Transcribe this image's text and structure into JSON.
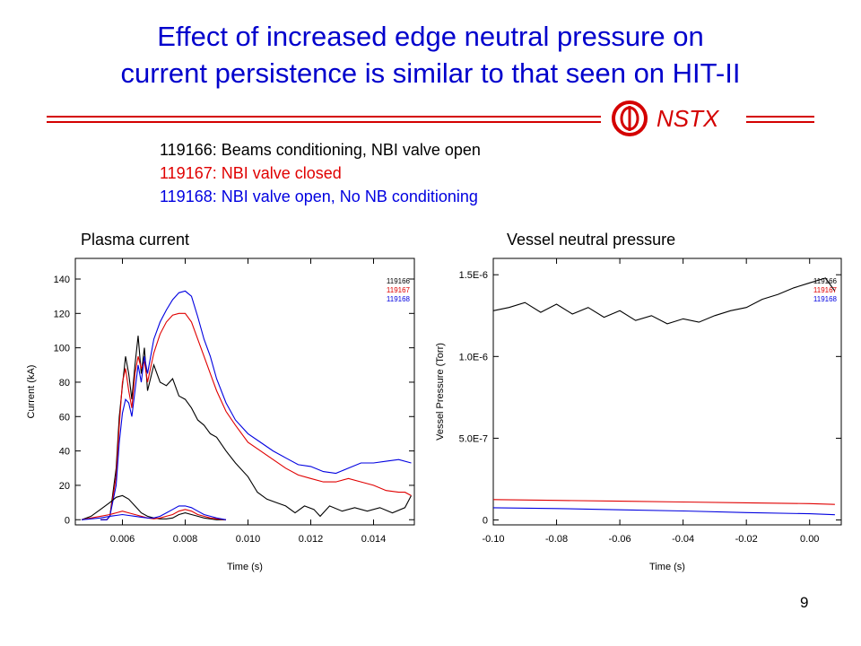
{
  "slide": {
    "title_line1": "Effect of increased edge neutral pressure on",
    "title_line2": "current persistence is similar to that seen on HIT-II",
    "logo_text": "NSTX",
    "page_number": "9",
    "colors": {
      "title": "#0000cc",
      "rule": "#d40000",
      "shot1": "#000000",
      "shot2": "#e00000",
      "shot3": "#0000e0"
    },
    "shots": [
      {
        "label": "119166: Beams conditioning, NBI valve open",
        "color": "#000000"
      },
      {
        "label": "119167: NBI valve closed",
        "color": "#e00000"
      },
      {
        "label": "119168: NBI valve open, No NB conditioning",
        "color": "#0000e0"
      }
    ],
    "left_panel_title": "Plasma current",
    "right_panel_title": "Vessel neutral pressure"
  },
  "chart_data": [
    {
      "type": "line",
      "title": "Plasma current",
      "xlabel": "Time (s)",
      "ylabel": "Current (kA)",
      "xlim": [
        0.0045,
        0.0153
      ],
      "ylim": [
        -3,
        152
      ],
      "xticks": [
        0.006,
        0.008,
        0.01,
        0.012,
        0.014
      ],
      "xtick_labels": [
        "0.006",
        "0.008",
        "0.010",
        "0.012",
        "0.014"
      ],
      "yticks": [
        0,
        20,
        40,
        60,
        80,
        100,
        120,
        140
      ],
      "ytick_labels": [
        "0",
        "20",
        "40",
        "60",
        "80",
        "100",
        "120",
        "140"
      ],
      "legend": [
        "119166",
        "119167",
        "119168"
      ],
      "legend_position": "top-right",
      "series": [
        {
          "name": "119166",
          "color": "#000000",
          "x": [
            0.0053,
            0.0055,
            0.0056,
            0.0058,
            0.0059,
            0.006,
            0.0061,
            0.0062,
            0.0063,
            0.0064,
            0.0065,
            0.0066,
            0.0067,
            0.0068,
            0.007,
            0.0072,
            0.0074,
            0.0076,
            0.0078,
            0.008,
            0.0082,
            0.0084,
            0.0086,
            0.0088,
            0.009,
            0.0093,
            0.0096,
            0.01,
            0.0103,
            0.0106,
            0.0109,
            0.0112,
            0.0115,
            0.0118,
            0.0121,
            0.0123,
            0.0126,
            0.013,
            0.0134,
            0.0138,
            0.0142,
            0.0146,
            0.015,
            0.0152
          ],
          "y": [
            0,
            0,
            2,
            30,
            60,
            78,
            95,
            85,
            70,
            90,
            107,
            85,
            100,
            75,
            90,
            80,
            78,
            82,
            72,
            70,
            65,
            58,
            55,
            50,
            48,
            40,
            33,
            25,
            16,
            12,
            10,
            8,
            4,
            8,
            6,
            2,
            8,
            5,
            7,
            5,
            7,
            4,
            7,
            14
          ]
        },
        {
          "name": "119167",
          "color": "#e00000",
          "x": [
            0.0053,
            0.0055,
            0.0056,
            0.0058,
            0.0059,
            0.006,
            0.0061,
            0.0062,
            0.0063,
            0.0064,
            0.0065,
            0.0066,
            0.0067,
            0.0068,
            0.007,
            0.0072,
            0.0074,
            0.0076,
            0.0078,
            0.008,
            0.0082,
            0.0084,
            0.0086,
            0.0088,
            0.009,
            0.0093,
            0.0096,
            0.01,
            0.0104,
            0.0108,
            0.0112,
            0.0116,
            0.012,
            0.0124,
            0.0128,
            0.0132,
            0.0136,
            0.014,
            0.0144,
            0.0148,
            0.015,
            0.0152
          ],
          "y": [
            0,
            0,
            2,
            25,
            55,
            80,
            88,
            75,
            65,
            85,
            95,
            88,
            92,
            80,
            97,
            108,
            115,
            119,
            120,
            120,
            115,
            105,
            95,
            85,
            75,
            63,
            55,
            45,
            40,
            35,
            30,
            26,
            24,
            22,
            22,
            24,
            22,
            20,
            17,
            16,
            16,
            14
          ]
        },
        {
          "name": "119168",
          "color": "#0000e0",
          "x": [
            0.0053,
            0.0055,
            0.0056,
            0.0058,
            0.0059,
            0.006,
            0.0061,
            0.0062,
            0.0063,
            0.0064,
            0.0065,
            0.0066,
            0.0067,
            0.0068,
            0.007,
            0.0072,
            0.0074,
            0.0076,
            0.0078,
            0.008,
            0.0082,
            0.0084,
            0.0086,
            0.0088,
            0.009,
            0.0093,
            0.0096,
            0.01,
            0.0104,
            0.0108,
            0.0112,
            0.0116,
            0.012,
            0.0124,
            0.0128,
            0.0132,
            0.0136,
            0.014,
            0.0144,
            0.0148,
            0.0152
          ],
          "y": [
            0,
            0,
            2,
            20,
            45,
            62,
            70,
            68,
            60,
            75,
            90,
            80,
            95,
            85,
            105,
            115,
            122,
            128,
            132,
            133,
            130,
            118,
            105,
            95,
            82,
            68,
            58,
            50,
            45,
            40,
            36,
            32,
            31,
            28,
            27,
            30,
            33,
            33,
            34,
            35,
            33
          ]
        },
        {
          "name": "119166 (low)",
          "color": "#000000",
          "x": [
            0.0047,
            0.005,
            0.0053,
            0.0056,
            0.0058,
            0.006,
            0.0062,
            0.0064,
            0.0066,
            0.0068,
            0.007,
            0.0072,
            0.0074,
            0.0076,
            0.0078,
            0.008,
            0.0082,
            0.0084,
            0.0086,
            0.0088,
            0.009,
            0.0093
          ],
          "y": [
            0,
            2,
            6,
            10,
            13,
            14,
            12,
            8,
            4,
            2,
            1,
            0.5,
            0.5,
            1,
            3,
            4,
            3,
            2,
            1,
            0.5,
            0,
            0
          ]
        },
        {
          "name": "119167 (low)",
          "color": "#e00000",
          "x": [
            0.0047,
            0.005,
            0.0053,
            0.0056,
            0.0058,
            0.006,
            0.0062,
            0.0064,
            0.0066,
            0.0068,
            0.007,
            0.0072,
            0.0074,
            0.0076,
            0.0078,
            0.008,
            0.0082,
            0.0084,
            0.0086,
            0.0088,
            0.009,
            0.0093
          ],
          "y": [
            0,
            1,
            2,
            3,
            4,
            5,
            4,
            3,
            2,
            1,
            0.5,
            1,
            2,
            3,
            5,
            6,
            5,
            3,
            2,
            1,
            0.5,
            0
          ]
        },
        {
          "name": "119168 (low)",
          "color": "#0000e0",
          "x": [
            0.0047,
            0.005,
            0.0053,
            0.0056,
            0.0058,
            0.006,
            0.0062,
            0.0064,
            0.0066,
            0.0068,
            0.007,
            0.0072,
            0.0074,
            0.0076,
            0.0078,
            0.008,
            0.0082,
            0.0084,
            0.0086,
            0.0088,
            0.009,
            0.0093
          ],
          "y": [
            0,
            0.5,
            1,
            2,
            2.5,
            3,
            2.5,
            2,
            1.5,
            1,
            1,
            2,
            4,
            6,
            8,
            8,
            7,
            5,
            3,
            2,
            1,
            0
          ]
        }
      ]
    },
    {
      "type": "line",
      "title": "Vessel neutral pressure",
      "xlabel": "Time (s)",
      "ylabel": "Vessel Pressure (Torr)",
      "xlim": [
        -0.1,
        0.01
      ],
      "ylim": [
        -3e-08,
        1.6e-06
      ],
      "xticks": [
        -0.1,
        -0.08,
        -0.06,
        -0.04,
        -0.02,
        0.0
      ],
      "xtick_labels": [
        "-0.10",
        "-0.08",
        "-0.06",
        "-0.04",
        "-0.02",
        "0.00"
      ],
      "yticks": [
        0,
        5e-07,
        1e-06,
        1.5e-06
      ],
      "ytick_labels": [
        "0",
        "5.0E-7",
        "1.0E-6",
        "1.5E-6"
      ],
      "legend": [
        "119166",
        "119167",
        "119168"
      ],
      "legend_position": "top-right",
      "series": [
        {
          "name": "119166",
          "color": "#000000",
          "x": [
            -0.1,
            -0.095,
            -0.09,
            -0.085,
            -0.08,
            -0.075,
            -0.07,
            -0.065,
            -0.06,
            -0.055,
            -0.05,
            -0.045,
            -0.04,
            -0.035,
            -0.03,
            -0.025,
            -0.02,
            -0.015,
            -0.01,
            -0.005,
            0.0,
            0.005,
            0.008
          ],
          "y": [
            1.28e-06,
            1.3e-06,
            1.33e-06,
            1.27e-06,
            1.32e-06,
            1.26e-06,
            1.3e-06,
            1.24e-06,
            1.28e-06,
            1.22e-06,
            1.25e-06,
            1.2e-06,
            1.23e-06,
            1.21e-06,
            1.25e-06,
            1.28e-06,
            1.3e-06,
            1.35e-06,
            1.38e-06,
            1.42e-06,
            1.45e-06,
            1.48e-06,
            1.4e-06
          ]
        },
        {
          "name": "119167",
          "color": "#e00000",
          "x": [
            -0.1,
            -0.08,
            -0.06,
            -0.04,
            -0.02,
            0.0,
            0.008
          ],
          "y": [
            1.25e-07,
            1.2e-07,
            1.15e-07,
            1.1e-07,
            1.05e-07,
            1e-07,
            9.5e-08
          ]
        },
        {
          "name": "119168",
          "color": "#0000e0",
          "x": [
            -0.1,
            -0.08,
            -0.06,
            -0.04,
            -0.02,
            0.0,
            0.008
          ],
          "y": [
            7.5e-08,
            7e-08,
            6.2e-08,
            5.5e-08,
            4.5e-08,
            3.8e-08,
            3.2e-08
          ]
        }
      ]
    }
  ]
}
